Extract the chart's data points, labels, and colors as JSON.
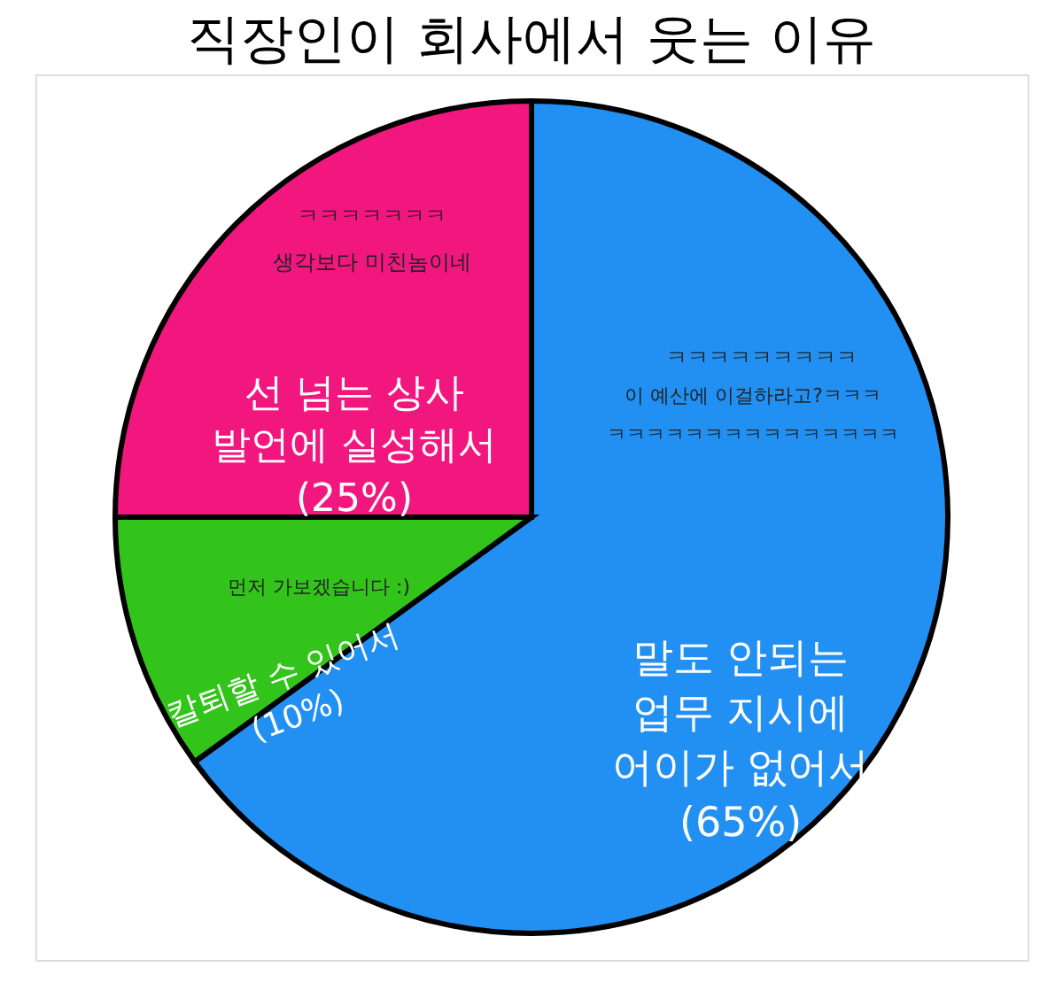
{
  "chart_data": {
    "type": "pie",
    "title": "직장인이 회사에서 웃는 이유",
    "categories": [
      "말도 안되는\n업무 지시에\n어이가 없어서",
      "칼퇴할 수 있어서",
      "선 넘는 상사\n발언에 실성해서"
    ],
    "values": [
      65,
      10,
      25
    ],
    "value_labels": [
      "(65%)",
      "(10%)",
      "(25%)"
    ],
    "colors": [
      "#2190f2",
      "#33c41c",
      "#f2177f"
    ],
    "annotations": [
      "ㅋㅋㅋㅋㅋㅋㅋㅋㅋ",
      "이 예산에 이걸하라고?ㅋㅋㅋ",
      "ㅋㅋㅋㅋㅋㅋㅋㅋㅋㅋㅋㅋㅋㅋㅋ",
      "먼저 가보겠습니다 :)",
      "ㅋㅋㅋㅋㅋㅋㅋ",
      "생각보다 미친놈이네"
    ]
  }
}
